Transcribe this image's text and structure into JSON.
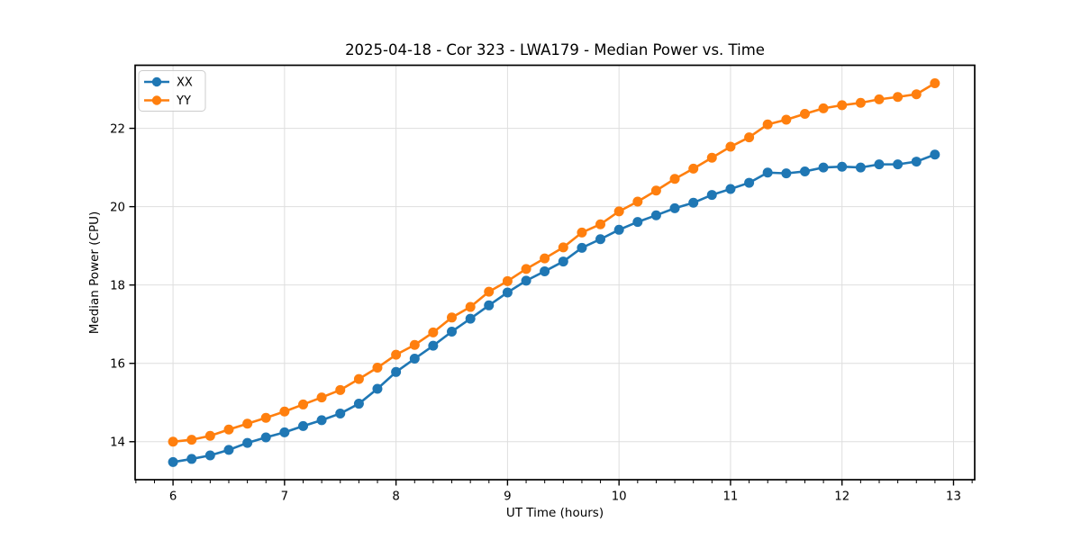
{
  "chart_data": {
    "type": "line",
    "title": "2025-04-18 - Cor 323 - LWA179 - Median Power vs. Time",
    "xlabel": "UT Time (hours)",
    "ylabel": "Median Power (CPU)",
    "xlim": [
      5.66,
      13.19
    ],
    "ylim": [
      13.03,
      23.61
    ],
    "xticks": [
      6,
      7,
      8,
      9,
      10,
      11,
      12,
      13
    ],
    "yticks": [
      14,
      16,
      18,
      20,
      22
    ],
    "minor_xtick_interval": 0.16667,
    "grid": true,
    "grid_color": "#dedede",
    "axis_color": "#000000",
    "legend_position": "upper left",
    "marker": "circle",
    "x": [
      6.0,
      6.167,
      6.333,
      6.5,
      6.667,
      6.833,
      7.0,
      7.167,
      7.333,
      7.5,
      7.667,
      7.833,
      8.0,
      8.167,
      8.333,
      8.5,
      8.667,
      8.833,
      9.0,
      9.167,
      9.333,
      9.5,
      9.667,
      9.833,
      10.0,
      10.167,
      10.333,
      10.5,
      10.667,
      10.833,
      11.0,
      11.167,
      11.333,
      11.5,
      11.667,
      11.833,
      12.0,
      12.167,
      12.333,
      12.5,
      12.667,
      12.833
    ],
    "series": [
      {
        "name": "XX",
        "color": "#1f77b4",
        "values": [
          13.48,
          13.56,
          13.65,
          13.79,
          13.97,
          14.11,
          14.24,
          14.4,
          14.55,
          14.72,
          14.97,
          15.35,
          15.78,
          16.12,
          16.45,
          16.81,
          17.14,
          17.48,
          17.81,
          18.11,
          18.35,
          18.6,
          18.95,
          19.17,
          19.41,
          19.61,
          19.78,
          19.96,
          20.1,
          20.3,
          20.45,
          20.61,
          20.87,
          20.85,
          20.9,
          21.0,
          21.02,
          21.0,
          21.08,
          21.08,
          21.15,
          21.33
        ]
      },
      {
        "name": "YY",
        "color": "#ff7f0e",
        "values": [
          14.0,
          14.05,
          14.15,
          14.31,
          14.46,
          14.61,
          14.77,
          14.95,
          15.13,
          15.32,
          15.6,
          15.89,
          16.22,
          16.47,
          16.79,
          17.17,
          17.44,
          17.83,
          18.1,
          18.41,
          18.68,
          18.96,
          19.34,
          19.55,
          19.88,
          20.13,
          20.41,
          20.71,
          20.97,
          21.25,
          21.53,
          21.77,
          22.1,
          22.22,
          22.37,
          22.51,
          22.59,
          22.65,
          22.74,
          22.8,
          22.87,
          23.15
        ]
      }
    ]
  }
}
